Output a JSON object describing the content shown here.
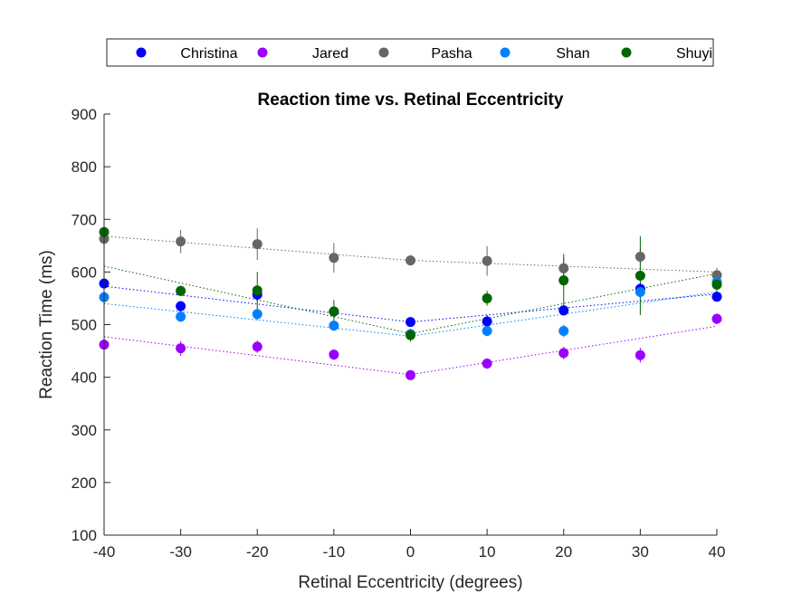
{
  "chart_data": {
    "type": "scatter",
    "title": "Reaction time vs. Retinal Eccentricity",
    "xlabel": "Retinal Eccentricity (degrees)",
    "ylabel": "Reaction Time (ms)",
    "xlim": [
      -40,
      40
    ],
    "ylim": [
      100,
      900
    ],
    "xticks": [
      -40,
      -30,
      -20,
      -10,
      0,
      10,
      20,
      30,
      40
    ],
    "yticks": [
      100,
      200,
      300,
      400,
      500,
      600,
      700,
      800,
      900
    ],
    "grid": false,
    "legend_position": "top, horizontal, outside plot",
    "x": [
      -40,
      -30,
      -20,
      -10,
      0,
      10,
      20,
      30,
      40
    ],
    "series": [
      {
        "name": "Christina",
        "color": "#0000ff",
        "values": [
          578,
          535,
          557,
          525,
          505,
          506,
          527,
          568,
          553
        ],
        "errors": [
          8,
          10,
          12,
          10,
          8,
          12,
          10,
          12,
          8
        ],
        "fit": [
          573,
          505,
          558
        ]
      },
      {
        "name": "Jared",
        "color": "#9900ff",
        "values": [
          462,
          455,
          458,
          443,
          404,
          426,
          446,
          442,
          511
        ],
        "errors": [
          10,
          14,
          12,
          10,
          6,
          10,
          12,
          14,
          10
        ],
        "fit": [
          477,
          405,
          497
        ]
      },
      {
        "name": "Pasha",
        "color": "#666666",
        "values": [
          663,
          658,
          653,
          627,
          622,
          621,
          607,
          629,
          594
        ],
        "errors": [
          18,
          22,
          30,
          28,
          10,
          28,
          20,
          16,
          14
        ],
        "fit": [
          668,
          622,
          600
        ]
      },
      {
        "name": "Shan",
        "color": "#0080ff",
        "values": [
          552,
          515,
          520,
          498,
          482,
          488,
          488,
          562,
          581
        ],
        "errors": [
          10,
          10,
          12,
          10,
          8,
          10,
          12,
          12,
          10
        ],
        "fit": [
          540,
          478,
          562
        ]
      },
      {
        "name": "Shuyi",
        "color": "#006600",
        "values": [
          676,
          564,
          565,
          525,
          480,
          550,
          584,
          593,
          576
        ],
        "errors": [
          8,
          10,
          35,
          22,
          12,
          14,
          50,
          75,
          15
        ],
        "fit": [
          611,
          483,
          597
        ]
      }
    ]
  }
}
